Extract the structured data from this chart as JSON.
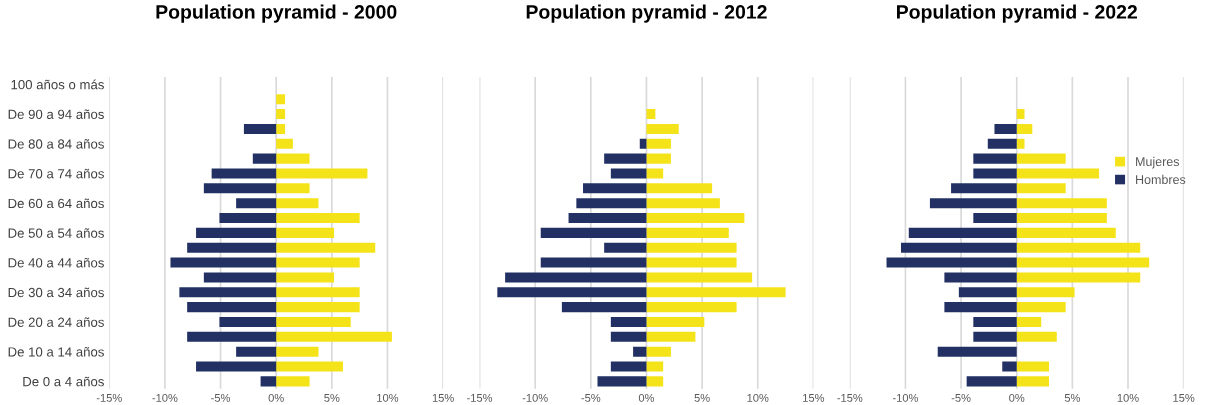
{
  "chart_data": [
    {
      "type": "bar",
      "orientation": "horizontal",
      "stacked": true,
      "title": "Population pyramid - 2000",
      "categories": [
        "100 años o más",
        null,
        "De 90 a 94 años",
        null,
        "De 80 a 84 años",
        null,
        "De 70 a 74 años",
        null,
        "De 60 a 64 años",
        null,
        "De 50 a 54 años",
        null,
        "De 40 a 44 años",
        null,
        "De 30 a 34 años",
        null,
        "De 20 a 24 años",
        null,
        "De 10 a 14 años",
        null,
        "De 0 a 4 años"
      ],
      "series": [
        {
          "color": "#f5e31a",
          "values": [
            0,
            0.8,
            0.8,
            0.8,
            1.5,
            3.0,
            8.2,
            3.0,
            3.8,
            7.5,
            5.2,
            8.9,
            7.5,
            5.2,
            7.5,
            7.5,
            6.7,
            10.4,
            3.8,
            6.0,
            3.0
          ]
        },
        {
          "color": "#223064",
          "values": [
            0,
            0,
            0,
            -2.9,
            0,
            -2.1,
            -5.8,
            -6.5,
            -3.6,
            -5.1,
            -7.2,
            -8.0,
            -9.5,
            -6.5,
            -8.7,
            -8.0,
            -5.1,
            -8.0,
            -3.6,
            -7.2,
            -1.4
          ]
        }
      ],
      "xlim": [
        -15,
        15
      ],
      "xticks": [
        {
          "value": -15,
          "label": "-15%"
        },
        {
          "value": -10,
          "label": "-10%"
        },
        {
          "value": -5,
          "label": "-5%"
        },
        {
          "value": 0,
          "label": "0%"
        },
        {
          "value": 5,
          "label": "5%"
        },
        {
          "value": 10,
          "label": "10%"
        },
        {
          "value": 15,
          "label": "15%"
        }
      ],
      "grid": "x"
    },
    {
      "type": "bar",
      "orientation": "horizontal",
      "stacked": true,
      "title": "Population pyramid - 2012",
      "categories": [
        null,
        null,
        null,
        null,
        null,
        null,
        null,
        null,
        null,
        null,
        null,
        null,
        null,
        null,
        null,
        null,
        null,
        null,
        null,
        null,
        null
      ],
      "series": [
        {
          "color": "#f5e31a",
          "values": [
            0,
            0,
            0.8,
            2.9,
            2.2,
            2.2,
            1.5,
            5.9,
            6.6,
            8.8,
            7.4,
            8.1,
            8.1,
            9.5,
            12.5,
            8.1,
            5.2,
            4.4,
            2.2,
            1.5,
            1.5
          ]
        },
        {
          "color": "#223064",
          "values": [
            0,
            0,
            0,
            0,
            -0.6,
            -3.8,
            -3.2,
            -5.7,
            -6.3,
            -7.0,
            -9.5,
            -3.8,
            -9.5,
            -12.7,
            -13.4,
            -7.6,
            -3.2,
            -3.2,
            -1.2,
            -3.2,
            -4.4
          ]
        }
      ],
      "xlim": [
        -15,
        15
      ],
      "xticks": [
        {
          "value": -15,
          "label": "-15%"
        },
        {
          "value": -10,
          "label": "-10%"
        },
        {
          "value": -5,
          "label": "-5%"
        },
        {
          "value": 0,
          "label": "0%"
        },
        {
          "value": 5,
          "label": "5%"
        },
        {
          "value": 10,
          "label": "10%"
        },
        {
          "value": 15,
          "label": "15%"
        }
      ],
      "grid": "x"
    },
    {
      "type": "bar",
      "orientation": "horizontal",
      "stacked": true,
      "title": "Population pyramid - 2022",
      "categories": [
        null,
        null,
        null,
        null,
        null,
        null,
        null,
        null,
        null,
        null,
        null,
        null,
        null,
        null,
        null,
        null,
        null,
        null,
        null,
        null,
        null
      ],
      "series": [
        {
          "name": "Mujeres",
          "color": "#f5e31a",
          "values": [
            0,
            0,
            0.7,
            1.4,
            0.7,
            4.4,
            7.4,
            4.4,
            8.1,
            8.1,
            8.9,
            11.1,
            11.9,
            11.1,
            5.2,
            4.4,
            2.2,
            3.6,
            0,
            2.9,
            2.9
          ]
        },
        {
          "name": "Hombres",
          "color": "#223064",
          "values": [
            0,
            0,
            0,
            -2.0,
            -2.6,
            -3.9,
            -3.9,
            -5.9,
            -7.8,
            -3.9,
            -9.7,
            -10.4,
            -11.7,
            -6.5,
            -5.2,
            -6.5,
            -3.9,
            -3.9,
            -7.1,
            -1.3,
            -4.5
          ]
        }
      ],
      "xlim": [
        -15,
        15
      ],
      "xticks": [
        {
          "value": -15,
          "label": "-15%"
        },
        {
          "value": -10,
          "label": "-10%"
        },
        {
          "value": -5,
          "label": "-5%"
        },
        {
          "value": 0,
          "label": "0%"
        },
        {
          "value": 5,
          "label": "5%"
        },
        {
          "value": 10,
          "label": "10%"
        },
        {
          "value": 15,
          "label": "15%"
        }
      ],
      "grid": "x",
      "legend": "right"
    }
  ]
}
